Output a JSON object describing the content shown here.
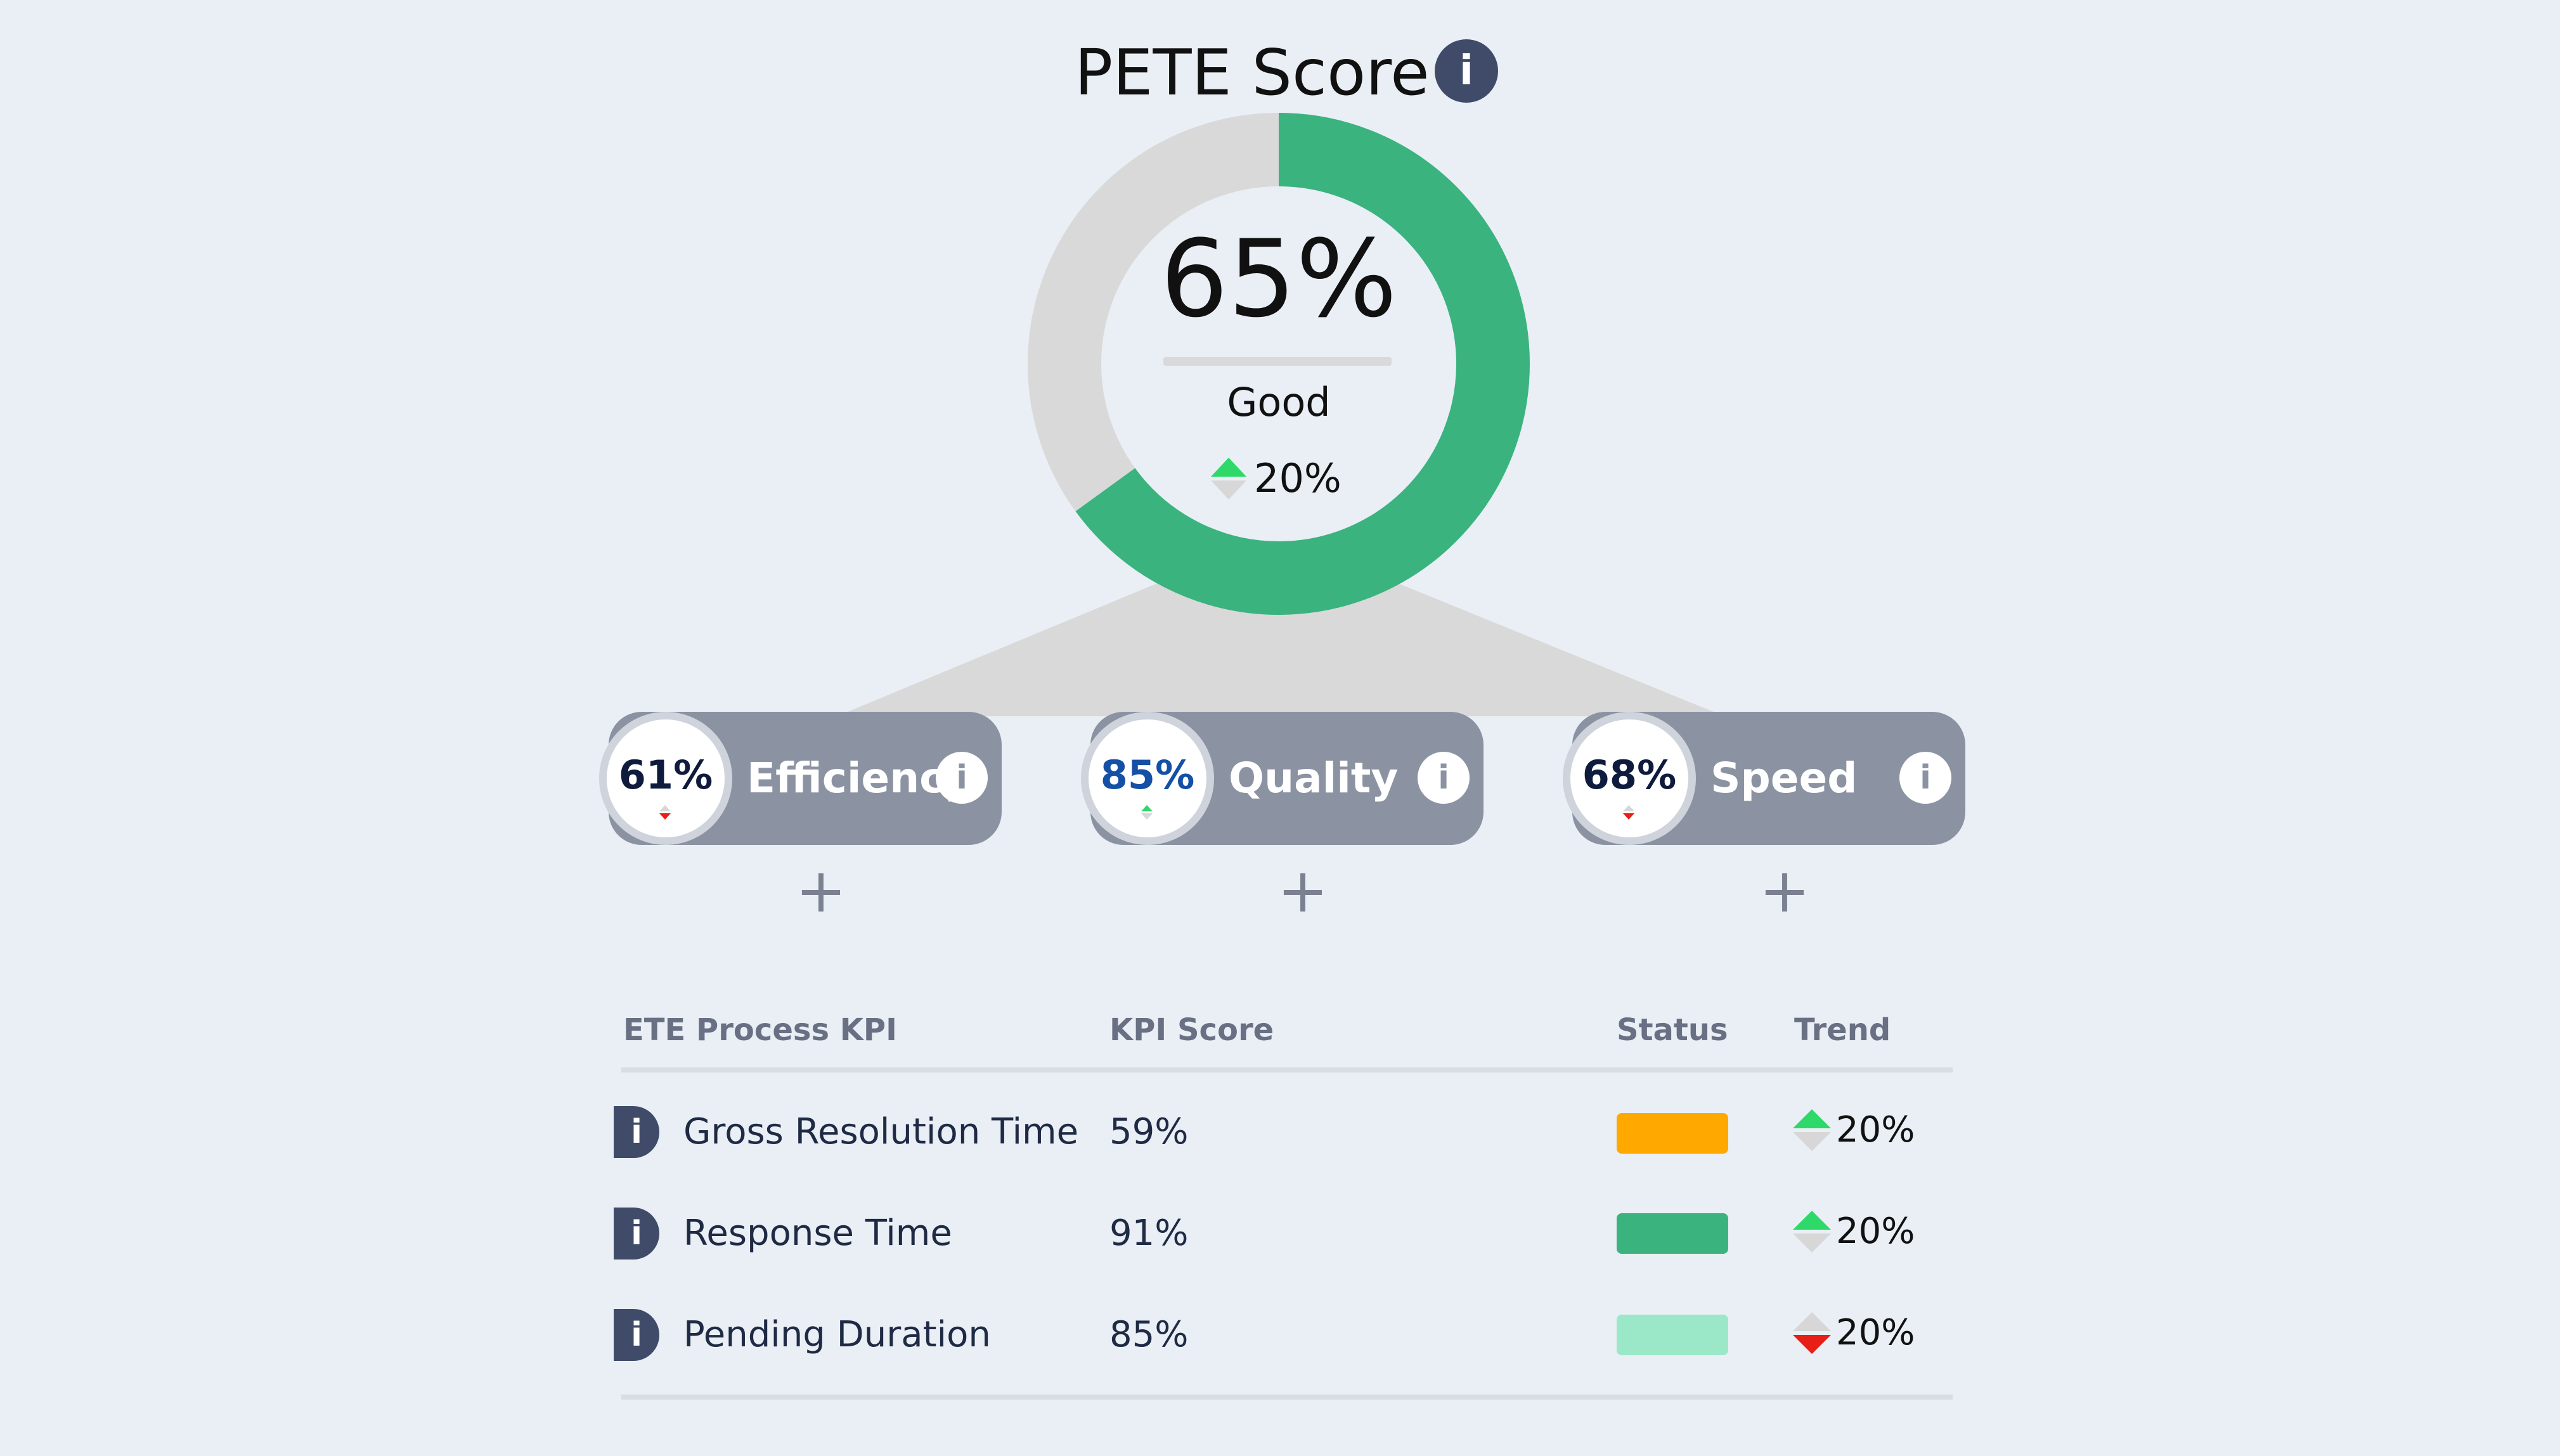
{
  "header": {
    "title": "PETE Score",
    "info_glyph": "i"
  },
  "score": {
    "value_pct": 65,
    "value_label": "65%",
    "rating": "Good",
    "trend_label": "20%",
    "trend_direction": "up"
  },
  "colors": {
    "good": "#3ab37f",
    "warning": "#ffa800",
    "light_good": "#9be8c8",
    "track": "#d9d9d9",
    "up_arrow": "#2ed869",
    "down_arrow": "#e61f17",
    "neutral_arrow": "#d7d7d7",
    "info_bg": "#3f4b69",
    "pill_bg": "#8b93a3"
  },
  "categories": [
    {
      "name": "Efficiency",
      "pct": "61%",
      "pct_color": "#0f1b3d",
      "trend": "down",
      "info": "i",
      "add": "+"
    },
    {
      "name": "Quality",
      "pct": "85%",
      "pct_color": "#1550a7",
      "trend": "up",
      "info": "i",
      "add": "+"
    },
    {
      "name": "Speed",
      "pct": "68%",
      "pct_color": "#0f1b3d",
      "trend": "down",
      "info": "i",
      "add": "+"
    }
  ],
  "table": {
    "headers": {
      "kpi": "ETE Process KPI",
      "score": "KPI Score",
      "status": "Status",
      "trend": "Trend"
    },
    "rows": [
      {
        "info": "i",
        "name": "Gross Resolution Time",
        "score": "59%",
        "status": "warning",
        "trend_label": "20%",
        "trend_direction": "up"
      },
      {
        "info": "i",
        "name": "Response Time",
        "score": "91%",
        "status": "good",
        "trend_label": "20%",
        "trend_direction": "up"
      },
      {
        "info": "i",
        "name": "Pending Duration",
        "score": "85%",
        "status": "light_good",
        "trend_label": "20%",
        "trend_direction": "down"
      }
    ]
  }
}
